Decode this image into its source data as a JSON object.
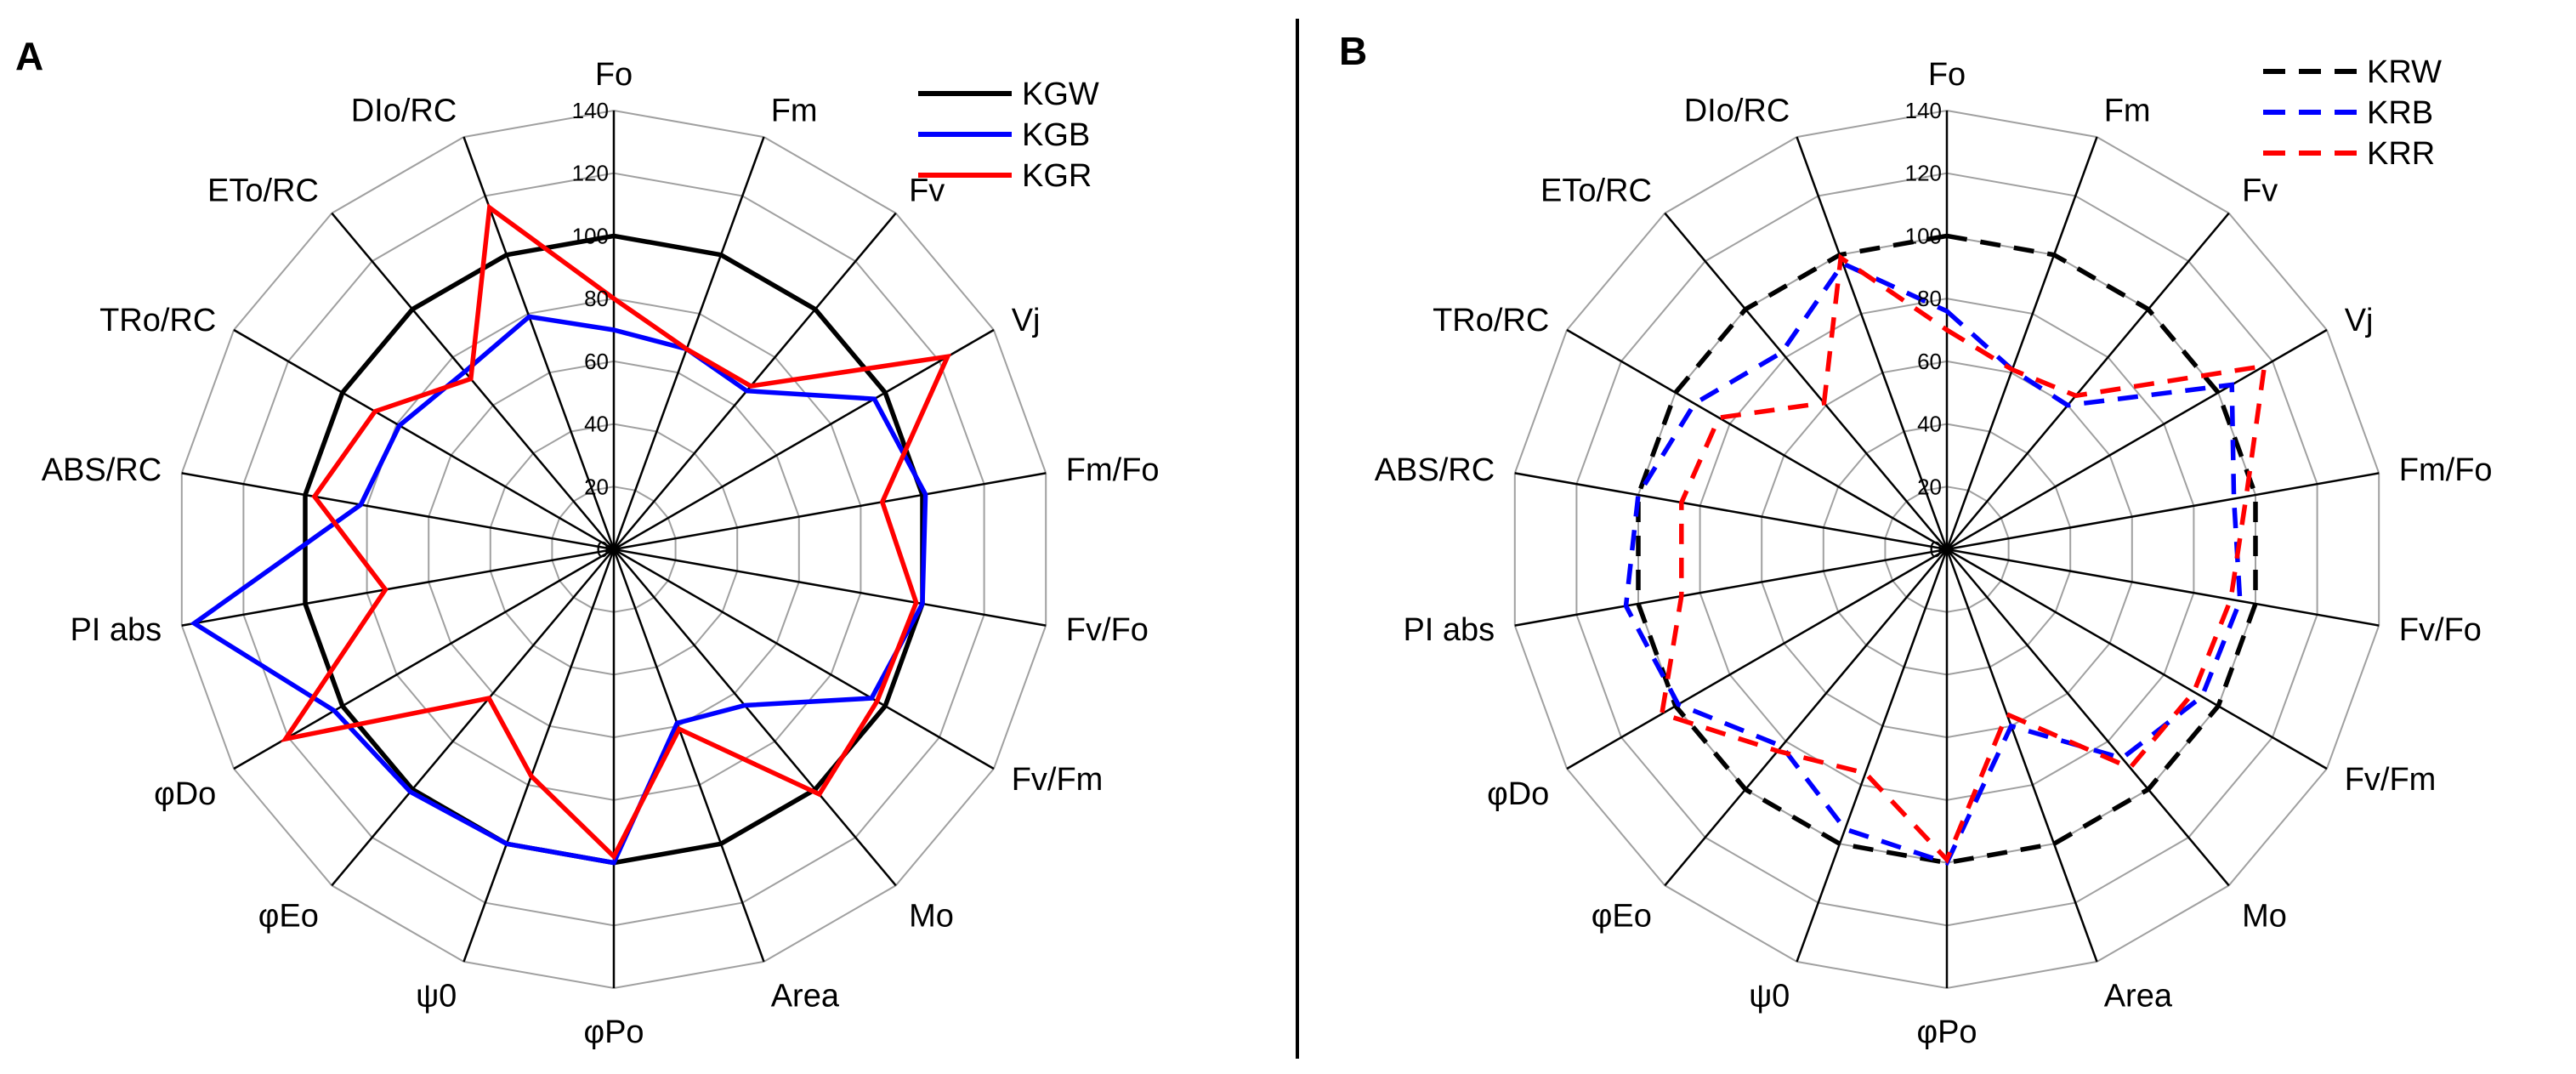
{
  "chart_data": [
    {
      "type": "radar",
      "panel_label": "A",
      "axes": [
        "Fo",
        "Fm",
        "Fv",
        "Vj",
        "Fm/Fo",
        "Fv/Fo",
        "Fv/Fm",
        "Mo",
        "Area",
        "φPo",
        "ψ0",
        "φEo",
        "φDo",
        "PI abs",
        "ABS/RC",
        "TRo/RC",
        "ETo/RC",
        "DIo/RC"
      ],
      "r_ticks": [
        "0",
        "20",
        "40",
        "60",
        "80",
        "100",
        "120",
        "140"
      ],
      "rlim": [
        0,
        140
      ],
      "grid": true,
      "legend_position": "top-right",
      "series": [
        {
          "name": "KGW",
          "color": "#000000",
          "dash": "solid",
          "values": [
            100,
            100,
            100,
            100,
            100,
            100,
            100,
            100,
            100,
            100,
            100,
            100,
            100,
            100,
            100,
            100,
            100,
            100
          ]
        },
        {
          "name": "KGB",
          "color": "#0000ff",
          "dash": "solid",
          "values": [
            70,
            68,
            66,
            96,
            101,
            100,
            95,
            65,
            59,
            100,
            100,
            101,
            103,
            136,
            82,
            79,
            74,
            79
          ]
        },
        {
          "name": "KGR",
          "color": "#ff0000",
          "dash": "solid",
          "values": [
            80,
            68,
            68,
            123,
            87,
            98,
            97,
            102,
            61,
            98,
            77,
            62,
            121,
            74,
            97,
            88,
            71,
            116
          ]
        }
      ]
    },
    {
      "type": "radar",
      "panel_label": "B",
      "axes": [
        "Fo",
        "Fm",
        "Fv",
        "Vj",
        "Fm/Fo",
        "Fv/Fo",
        "Fv/Fm",
        "Mo",
        "Area",
        "φPo",
        "ψ0",
        "φEo",
        "φDo",
        "PI abs",
        "ABS/RC",
        "TRo/RC",
        "ETo/RC",
        "DIo/RC"
      ],
      "r_ticks": [
        "0",
        "20",
        "40",
        "60",
        "80",
        "100",
        "120",
        "140"
      ],
      "rlim": [
        0,
        140
      ],
      "grid": true,
      "legend_position": "top-right",
      "series": [
        {
          "name": "KRW",
          "color": "#000000",
          "dash": "dashed",
          "values": [
            100,
            100,
            100,
            100,
            100,
            100,
            100,
            100,
            100,
            100,
            100,
            100,
            100,
            100,
            100,
            100,
            100,
            100
          ]
        },
        {
          "name": "KRB",
          "color": "#0000ff",
          "dash": "dashed",
          "values": [
            76,
            61,
            60,
            105,
            93,
            95,
            94,
            87,
            60,
            100,
            95,
            82,
            99,
            104,
            100,
            93,
            82,
            97
          ]
        },
        {
          "name": "KRR",
          "color": "#ff0000",
          "dash": "dashed",
          "values": [
            70,
            61,
            64,
            117,
            97,
            92,
            91,
            91,
            56,
            99,
            76,
            84,
            105,
            86,
            86,
            84,
            61,
            99
          ]
        }
      ]
    }
  ]
}
